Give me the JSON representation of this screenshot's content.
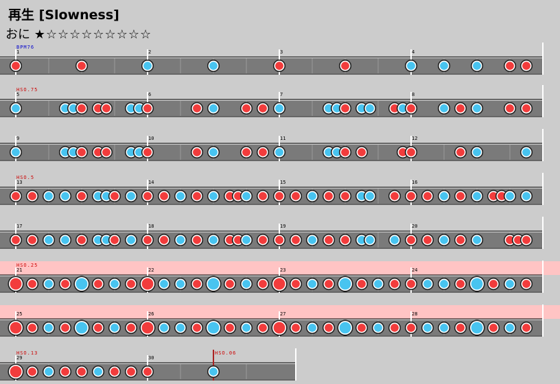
{
  "header": {
    "title": "再生 [Slowness]",
    "difficulty_name": "おに",
    "stars": "★☆☆☆☆☆☆☆☆☆"
  },
  "rows": [
    {
      "markers": [
        {
          "text": "BPM76",
          "color": "#0000cc"
        }
      ],
      "measures": [
        "1",
        "2",
        "3",
        "4"
      ],
      "highlight": false,
      "notes": [
        [
          23,
          "d"
        ],
        [
          119,
          "d"
        ],
        [
          215,
          "k"
        ],
        [
          311,
          "k"
        ],
        [
          407,
          "d"
        ],
        [
          503,
          "d"
        ],
        [
          599,
          "k"
        ],
        [
          647,
          "k"
        ],
        [
          695,
          "k"
        ],
        [
          743,
          "d"
        ],
        [
          767,
          "d"
        ]
      ]
    },
    {
      "markers": [
        {
          "text": "HSO.75",
          "color": "#cc0000"
        }
      ],
      "measures": [
        "5",
        "6",
        "7",
        "8"
      ],
      "highlight": false,
      "notes": [
        [
          23,
          "k"
        ],
        [
          95,
          "k"
        ],
        [
          107,
          "k"
        ],
        [
          119,
          "d"
        ],
        [
          143,
          "d"
        ],
        [
          155,
          "d"
        ],
        [
          191,
          "k"
        ],
        [
          203,
          "k"
        ],
        [
          215,
          "d"
        ],
        [
          287,
          "d"
        ],
        [
          311,
          "k"
        ],
        [
          359,
          "d"
        ],
        [
          383,
          "d"
        ],
        [
          407,
          "k"
        ],
        [
          479,
          "k"
        ],
        [
          491,
          "k"
        ],
        [
          503,
          "d"
        ],
        [
          527,
          "k"
        ],
        [
          539,
          "k"
        ],
        [
          575,
          "d"
        ],
        [
          587,
          "k"
        ],
        [
          599,
          "d"
        ],
        [
          647,
          "k"
        ],
        [
          671,
          "d"
        ],
        [
          695,
          "k"
        ],
        [
          743,
          "d"
        ],
        [
          767,
          "d"
        ]
      ]
    },
    {
      "markers": [],
      "measures": [
        "9",
        "10",
        "11",
        "12"
      ],
      "highlight": false,
      "notes": [
        [
          23,
          "k"
        ],
        [
          95,
          "k"
        ],
        [
          107,
          "k"
        ],
        [
          119,
          "d"
        ],
        [
          143,
          "d"
        ],
        [
          155,
          "d"
        ],
        [
          191,
          "k"
        ],
        [
          203,
          "k"
        ],
        [
          215,
          "d"
        ],
        [
          287,
          "d"
        ],
        [
          311,
          "k"
        ],
        [
          359,
          "d"
        ],
        [
          383,
          "d"
        ],
        [
          407,
          "k"
        ],
        [
          479,
          "k"
        ],
        [
          491,
          "k"
        ],
        [
          503,
          "d"
        ],
        [
          527,
          "d"
        ],
        [
          587,
          "d"
        ],
        [
          599,
          "d"
        ],
        [
          671,
          "d"
        ],
        [
          695,
          "k"
        ],
        [
          767,
          "k"
        ]
      ]
    },
    {
      "markers": [
        {
          "text": "HSO.5",
          "color": "#cc0000"
        }
      ],
      "measures": [
        "13",
        "14",
        "15",
        "16"
      ],
      "highlight": false,
      "notes": [
        [
          23,
          "d"
        ],
        [
          47,
          "d"
        ],
        [
          71,
          "k"
        ],
        [
          95,
          "k"
        ],
        [
          119,
          "d"
        ],
        [
          143,
          "k"
        ],
        [
          155,
          "k"
        ],
        [
          167,
          "d"
        ],
        [
          191,
          "k"
        ],
        [
          215,
          "d"
        ],
        [
          239,
          "d"
        ],
        [
          263,
          "k"
        ],
        [
          287,
          "d"
        ],
        [
          311,
          "k"
        ],
        [
          335,
          "d"
        ],
        [
          347,
          "d"
        ],
        [
          359,
          "k"
        ],
        [
          383,
          "d"
        ],
        [
          407,
          "d"
        ],
        [
          431,
          "d"
        ],
        [
          455,
          "k"
        ],
        [
          479,
          "d"
        ],
        [
          503,
          "d"
        ],
        [
          527,
          "k"
        ],
        [
          539,
          "k"
        ],
        [
          575,
          "d"
        ],
        [
          599,
          "d"
        ],
        [
          623,
          "d"
        ],
        [
          647,
          "k"
        ],
        [
          671,
          "d"
        ],
        [
          695,
          "k"
        ],
        [
          719,
          "d"
        ],
        [
          731,
          "d"
        ],
        [
          743,
          "k"
        ],
        [
          767,
          "k"
        ]
      ]
    },
    {
      "markers": [],
      "measures": [
        "17",
        "18",
        "19",
        "20"
      ],
      "highlight": false,
      "notes": [
        [
          23,
          "d"
        ],
        [
          47,
          "d"
        ],
        [
          71,
          "k"
        ],
        [
          95,
          "k"
        ],
        [
          119,
          "d"
        ],
        [
          143,
          "k"
        ],
        [
          155,
          "k"
        ],
        [
          167,
          "d"
        ],
        [
          191,
          "k"
        ],
        [
          215,
          "d"
        ],
        [
          239,
          "d"
        ],
        [
          263,
          "k"
        ],
        [
          287,
          "d"
        ],
        [
          311,
          "k"
        ],
        [
          335,
          "d"
        ],
        [
          347,
          "d"
        ],
        [
          359,
          "k"
        ],
        [
          383,
          "d"
        ],
        [
          407,
          "d"
        ],
        [
          431,
          "d"
        ],
        [
          455,
          "k"
        ],
        [
          479,
          "d"
        ],
        [
          503,
          "d"
        ],
        [
          527,
          "k"
        ],
        [
          539,
          "k"
        ],
        [
          575,
          "k"
        ],
        [
          599,
          "d"
        ],
        [
          623,
          "d"
        ],
        [
          647,
          "k"
        ],
        [
          671,
          "d"
        ],
        [
          695,
          "k"
        ],
        [
          743,
          "d"
        ],
        [
          755,
          "d"
        ],
        [
          767,
          "d"
        ]
      ]
    },
    {
      "markers": [
        {
          "text": "HSO.25",
          "color": "#cc0000"
        }
      ],
      "measures": [
        "21",
        "22",
        "23",
        "24"
      ],
      "highlight": true,
      "notes": [
        [
          23,
          "D"
        ],
        [
          47,
          "d"
        ],
        [
          71,
          "k"
        ],
        [
          95,
          "d"
        ],
        [
          119,
          "K"
        ],
        [
          143,
          "d"
        ],
        [
          167,
          "k"
        ],
        [
          191,
          "d"
        ],
        [
          215,
          "D"
        ],
        [
          239,
          "k"
        ],
        [
          263,
          "k"
        ],
        [
          287,
          "d"
        ],
        [
          311,
          "K"
        ],
        [
          335,
          "d"
        ],
        [
          359,
          "k"
        ],
        [
          383,
          "d"
        ],
        [
          407,
          "D"
        ],
        [
          431,
          "d"
        ],
        [
          455,
          "k"
        ],
        [
          479,
          "d"
        ],
        [
          503,
          "K"
        ],
        [
          527,
          "d"
        ],
        [
          551,
          "k"
        ],
        [
          575,
          "d"
        ],
        [
          599,
          "d"
        ],
        [
          623,
          "k"
        ],
        [
          647,
          "k"
        ],
        [
          671,
          "d"
        ],
        [
          695,
          "K"
        ],
        [
          719,
          "d"
        ],
        [
          743,
          "k"
        ],
        [
          767,
          "d"
        ]
      ]
    },
    {
      "markers": [],
      "measures": [
        "25",
        "26",
        "27",
        "28"
      ],
      "highlight": true,
      "notes": [
        [
          23,
          "D"
        ],
        [
          47,
          "d"
        ],
        [
          71,
          "k"
        ],
        [
          95,
          "d"
        ],
        [
          119,
          "K"
        ],
        [
          143,
          "d"
        ],
        [
          167,
          "k"
        ],
        [
          191,
          "d"
        ],
        [
          215,
          "D"
        ],
        [
          239,
          "k"
        ],
        [
          263,
          "k"
        ],
        [
          287,
          "d"
        ],
        [
          311,
          "K"
        ],
        [
          335,
          "d"
        ],
        [
          359,
          "k"
        ],
        [
          383,
          "d"
        ],
        [
          407,
          "D"
        ],
        [
          431,
          "d"
        ],
        [
          455,
          "k"
        ],
        [
          479,
          "d"
        ],
        [
          503,
          "K"
        ],
        [
          527,
          "d"
        ],
        [
          551,
          "k"
        ],
        [
          575,
          "d"
        ],
        [
          599,
          "d"
        ],
        [
          623,
          "k"
        ],
        [
          647,
          "k"
        ],
        [
          671,
          "d"
        ],
        [
          695,
          "K"
        ],
        [
          719,
          "d"
        ],
        [
          743,
          "k"
        ],
        [
          767,
          "d"
        ]
      ]
    },
    {
      "markers": [
        {
          "text": "HSO.13",
          "color": "#cc0000"
        },
        {
          "text": "HSO.06",
          "color": "#cc0000"
        }
      ],
      "measures": [
        "29",
        "30"
      ],
      "highlight": false,
      "notes": [
        [
          23,
          "D"
        ],
        [
          47,
          "d"
        ],
        [
          71,
          "k"
        ],
        [
          95,
          "d"
        ],
        [
          119,
          "d"
        ],
        [
          143,
          "k"
        ],
        [
          167,
          "d"
        ],
        [
          191,
          "d"
        ],
        [
          215,
          "d"
        ],
        [
          311,
          "k"
        ]
      ]
    }
  ],
  "colors": {
    "background": "#cccccc",
    "lane": "#7a7a7a",
    "highlight": "#ffc4c4",
    "don": "#f23c3c",
    "ka": "#48c4f0",
    "bpm_label": "#0000cc",
    "hs_label": "#cc0000"
  }
}
